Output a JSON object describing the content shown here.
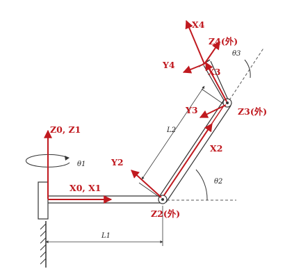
{
  "diagram": {
    "frames": {
      "base": "Z0, Z1",
      "x01": "X0, X1",
      "y2": "Y2",
      "x2": "X2",
      "z2": "Z2(外)",
      "y3": "Y3",
      "x3": "X3",
      "z3": "Z3(外)",
      "x4": "X4",
      "y4": "Y4",
      "z4": "Z4(外)"
    },
    "dimensions": {
      "theta1": "θ1",
      "theta2": "θ2",
      "theta3": "θ3",
      "link1": "L1",
      "link2": "L2"
    }
  },
  "colors": {
    "axis": "#c0191f",
    "link": "#333333",
    "construction": "#555555"
  }
}
